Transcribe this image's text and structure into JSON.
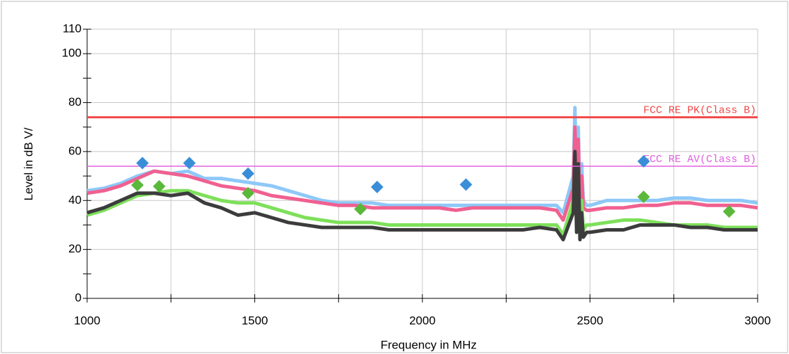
{
  "chart_data": {
    "type": "line",
    "xlabel": "Frequency in MHz",
    "ylabel": "Level in dB   V/",
    "xlim": [
      1000,
      3000
    ],
    "xticks": [
      1000,
      1500,
      2000,
      2500,
      3000
    ],
    "xminorticks": [
      1250,
      1750,
      2250,
      2750
    ],
    "ylim": [
      0,
      110
    ],
    "yticks": [
      0,
      20,
      40,
      60,
      80,
      100,
      110
    ],
    "yminorticks": [
      10,
      30,
      50,
      70,
      90
    ],
    "grid": true,
    "x": [
      1000,
      1050,
      1100,
      1150,
      1200,
      1250,
      1300,
      1350,
      1400,
      1450,
      1500,
      1550,
      1600,
      1650,
      1700,
      1750,
      1800,
      1850,
      1900,
      1950,
      2000,
      2050,
      2100,
      2150,
      2200,
      2250,
      2300,
      2350,
      2400,
      2420,
      2450,
      2455,
      2460,
      2465,
      2470,
      2475,
      2480,
      2490,
      2500,
      2550,
      2600,
      2650,
      2700,
      2750,
      2800,
      2850,
      2900,
      2950,
      3000
    ],
    "series": [
      {
        "color": "#8ec8f8",
        "values": [
          44,
          45,
          47,
          50,
          52,
          51,
          52,
          49,
          49,
          48,
          47,
          46,
          44,
          42,
          40,
          39,
          39,
          39,
          38,
          38,
          38,
          38,
          38,
          38,
          38,
          38,
          38,
          38,
          38,
          35,
          50,
          78,
          40,
          70,
          38,
          55,
          40,
          38,
          38,
          40,
          40,
          40,
          40,
          41,
          41,
          40,
          40,
          40,
          39
        ]
      },
      {
        "color": "#f06090",
        "values": [
          43,
          44,
          46,
          49,
          52,
          51,
          50,
          48,
          46,
          45,
          44,
          42,
          41,
          40,
          39,
          38,
          38,
          37,
          37,
          37,
          37,
          37,
          36,
          37,
          37,
          37,
          37,
          37,
          36,
          32,
          45,
          70,
          36,
          65,
          35,
          50,
          37,
          36,
          36,
          37,
          37,
          38,
          38,
          39,
          39,
          38,
          38,
          38,
          37
        ]
      },
      {
        "color": "#7ee05a",
        "values": [
          34,
          36,
          39,
          42,
          43,
          44,
          44,
          42,
          40,
          39,
          39,
          37,
          35,
          33,
          32,
          31,
          31,
          31,
          30,
          30,
          30,
          30,
          30,
          30,
          30,
          30,
          30,
          30,
          30,
          26,
          40,
          55,
          30,
          52,
          27,
          40,
          28,
          30,
          30,
          31,
          32,
          32,
          31,
          30,
          30,
          30,
          29,
          29,
          29
        ]
      },
      {
        "color": "#3c3c3c",
        "values": [
          35,
          37,
          40,
          43,
          43,
          42,
          43,
          39,
          37,
          34,
          35,
          33,
          31,
          30,
          29,
          29,
          29,
          29,
          28,
          28,
          28,
          28,
          28,
          28,
          28,
          28,
          28,
          29,
          28,
          24,
          35,
          60,
          27,
          55,
          24,
          35,
          25,
          27,
          27,
          28,
          28,
          30,
          30,
          30,
          29,
          29,
          28,
          28,
          28
        ]
      }
    ],
    "markers": [
      {
        "color": "#3a8ed8",
        "x": [
          1165,
          1305,
          1480,
          1865,
          2130,
          2660
        ],
        "values": [
          55.3,
          55.3,
          51,
          45.5,
          46.5,
          56
        ]
      },
      {
        "color": "#5ab83a",
        "x": [
          1150,
          1215,
          1480,
          1815,
          2660,
          2915
        ],
        "values": [
          46.3,
          45.8,
          43,
          36.5,
          41.5,
          35.5
        ]
      }
    ],
    "limits": [
      {
        "name": "FCC RE PK(Class B)",
        "value": 74,
        "color": "#f04848"
      },
      {
        "name": "FCC RE AV(Class B)",
        "value": 54,
        "color": "#e060e0"
      }
    ]
  }
}
